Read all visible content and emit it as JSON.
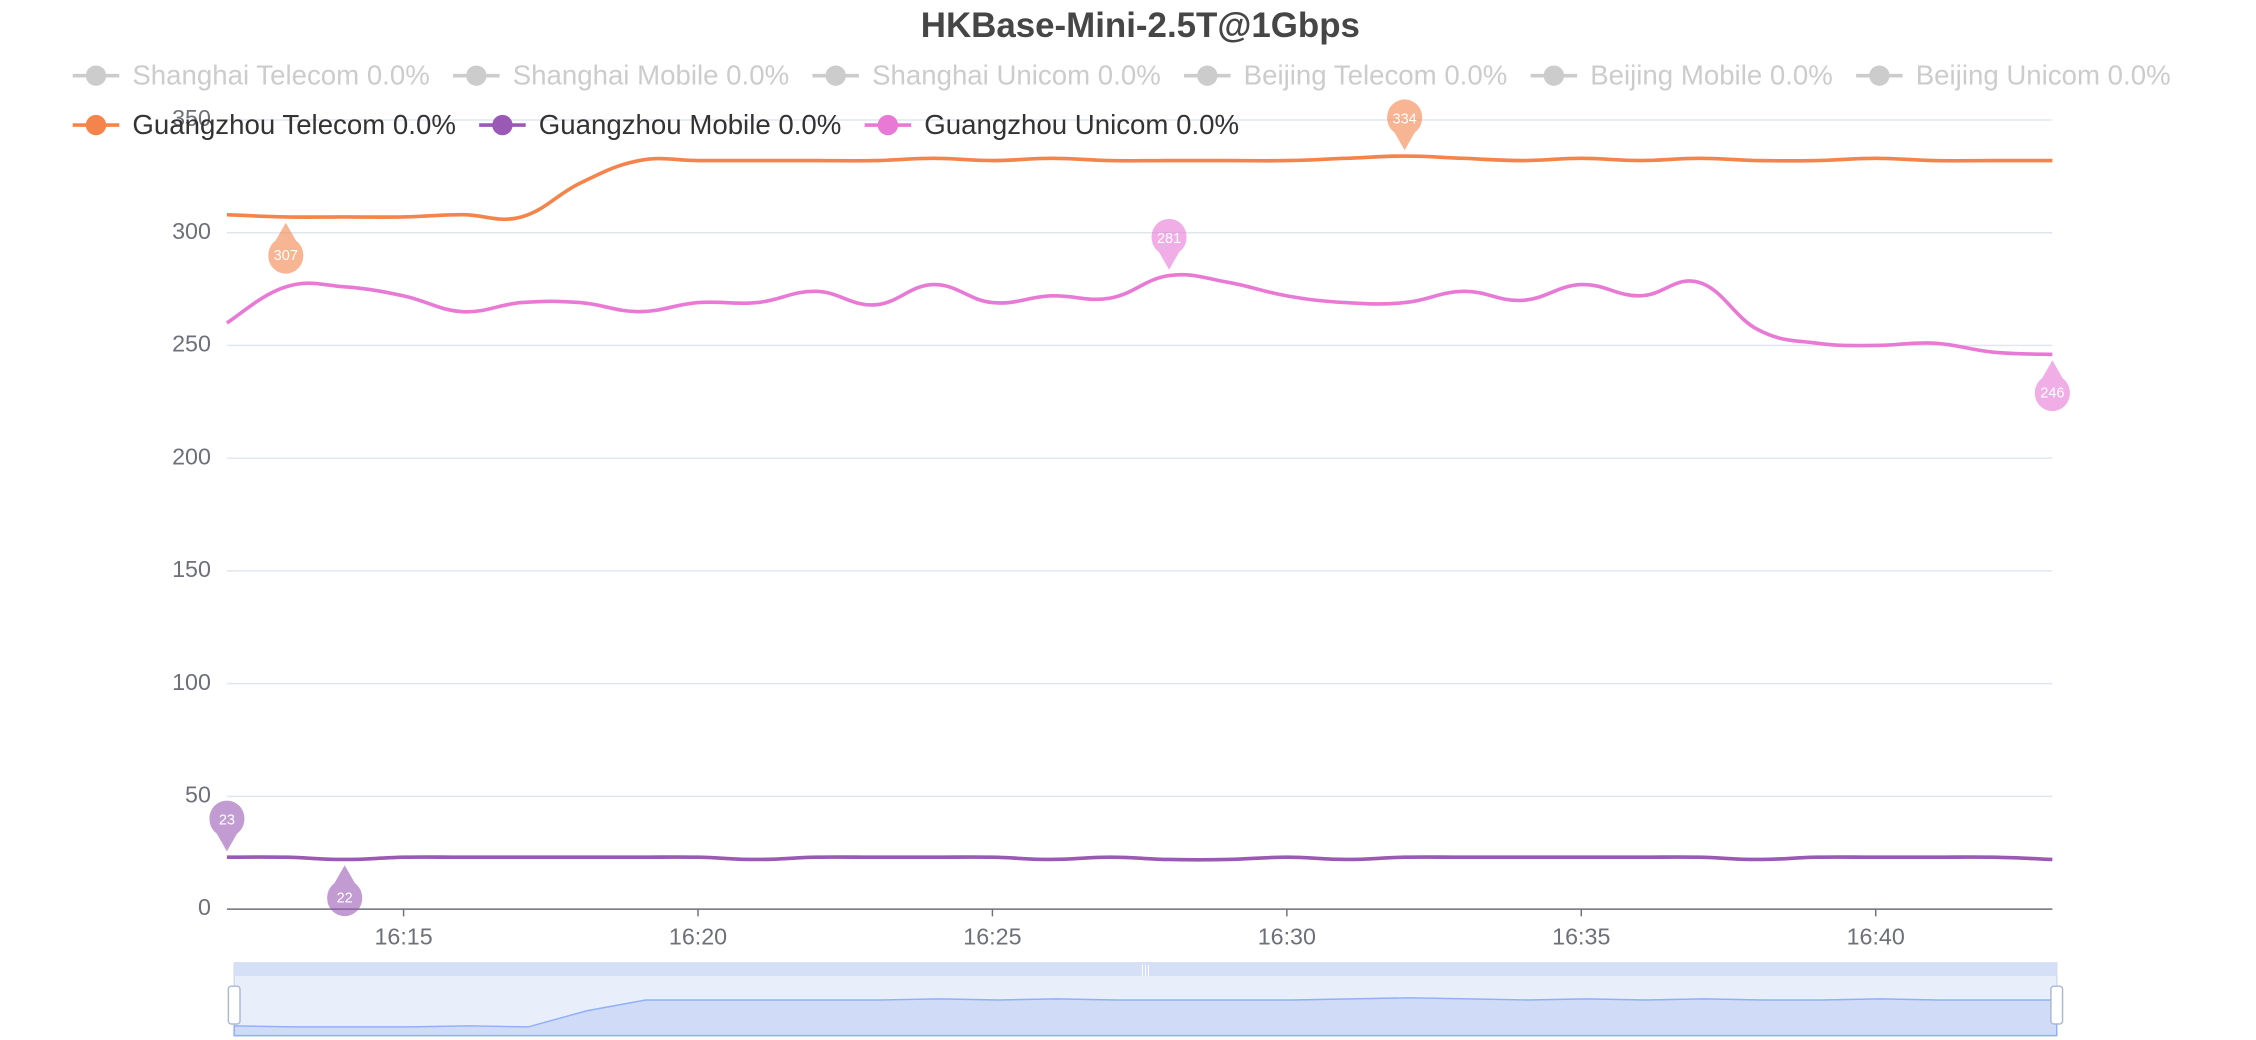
{
  "chart_data": {
    "type": "line",
    "title": "HKBase-Mini-2.5T@1Gbps",
    "categories": [
      null,
      null,
      null,
      "16:15",
      null,
      null,
      null,
      null,
      "16:20",
      null,
      null,
      null,
      null,
      "16:25",
      null,
      null,
      null,
      null,
      "16:30",
      null,
      null,
      null,
      null,
      "16:35",
      null,
      null,
      null,
      null,
      "16:40",
      null,
      null,
      null
    ],
    "series": [
      {
        "name": "Guangzhou Telecom 0.0%",
        "color": "#f5844c",
        "values": [
          308,
          307,
          307,
          307,
          308,
          307,
          322,
          332,
          332,
          332,
          332,
          332,
          333,
          332,
          333,
          332,
          332,
          332,
          332,
          333,
          334,
          333,
          332,
          333,
          332,
          333,
          332,
          332,
          333,
          332,
          332,
          332
        ]
      },
      {
        "name": "Guangzhou Mobile 0.0%",
        "color": "#9b59b6",
        "values": [
          23,
          23,
          22,
          23,
          23,
          23,
          23,
          23,
          23,
          22,
          23,
          23,
          23,
          23,
          22,
          23,
          22,
          22,
          23,
          22,
          23,
          23,
          23,
          23,
          23,
          23,
          22,
          23,
          23,
          23,
          23,
          22
        ]
      },
      {
        "name": "Guangzhou Unicom 0.0%",
        "color": "#e87ad6",
        "values": [
          260,
          276,
          276,
          272,
          265,
          269,
          269,
          265,
          269,
          269,
          274,
          268,
          277,
          269,
          272,
          271,
          281,
          278,
          272,
          269,
          269,
          274,
          270,
          277,
          272,
          278,
          257,
          251,
          250,
          251,
          247,
          246
        ]
      }
    ],
    "legend_inactive": [
      "Shanghai Telecom 0.0%",
      "Shanghai Mobile 0.0%",
      "Shanghai Unicom 0.0%",
      "Beijing Telecom 0.0%",
      "Beijing Mobile 0.0%",
      "Beijing Unicom 0.0%"
    ],
    "inactive_color": "#cccccc",
    "ylim": [
      0,
      350
    ],
    "yticks": [
      0,
      50,
      100,
      150,
      200,
      250,
      300,
      350
    ],
    "grid": true,
    "mark_points": true,
    "data_zoom": true
  }
}
